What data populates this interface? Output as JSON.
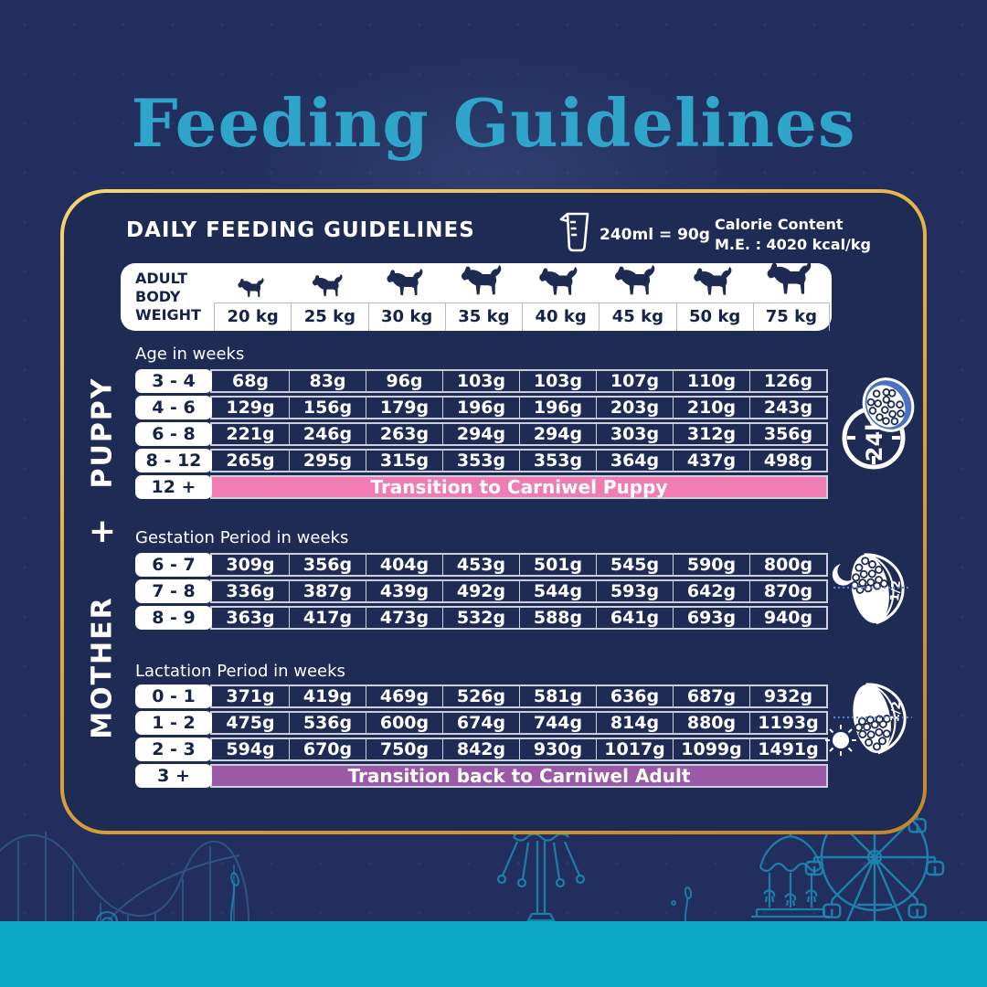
{
  "page_title": "Feeding Guidelines",
  "colors": {
    "background_navy": "#222f5e",
    "panel_navy": "#1e2b55",
    "gold_border": "#e3ab3f",
    "title_teal": "#2fa6c9",
    "bottom_strip_teal": "#0aa6c4",
    "table_border_silver": "#ccd0db",
    "puppy_transition_pink": "#ef7cb2",
    "mother_transition_purple": "#9a5aa8",
    "bowl_blue": "#4a71c4",
    "line_art_teal": "#1d8cb4"
  },
  "icons": [
    "measuring-cup-icon",
    "dog-icon",
    "clock-24h-icon",
    "kibble-bowl-icon",
    "crescent-moon-icon",
    "half-bowl-icon",
    "sun-icon",
    "ferris-wheel-icon",
    "carousel-icon",
    "swing-ride-icon",
    "roller-coaster-icon",
    "tree-icon"
  ],
  "panel": {
    "header": {
      "title": "DAILY FEEDING GUIDELINES",
      "cup_note": "240ml = 90g",
      "calorie_line1": "Calorie Content",
      "calorie_line2": "M.E. : 4020 kcal/kg"
    },
    "weight_header": {
      "label_lines": [
        "ADULT",
        "BODY",
        "WEIGHT"
      ],
      "weights": [
        "20 kg",
        "25 kg",
        "30 kg",
        "35 kg",
        "40 kg",
        "45 kg",
        "50 kg",
        "75 kg"
      ]
    },
    "puppy": {
      "section_label": "PUPPY",
      "age_label": "Age in weeks",
      "rows": [
        {
          "age": "3 - 4",
          "values": [
            "68g",
            "83g",
            "96g",
            "103g",
            "103g",
            "107g",
            "110g",
            "126g"
          ]
        },
        {
          "age": "4 - 6",
          "values": [
            "129g",
            "156g",
            "179g",
            "196g",
            "196g",
            "203g",
            "210g",
            "243g"
          ]
        },
        {
          "age": "6 - 8",
          "values": [
            "221g",
            "246g",
            "263g",
            "294g",
            "294g",
            "303g",
            "312g",
            "356g"
          ]
        },
        {
          "age": "8 - 12",
          "values": [
            "265g",
            "295g",
            "315g",
            "353g",
            "353g",
            "364g",
            "437g",
            "498g"
          ]
        }
      ],
      "transition": {
        "age": "12 +",
        "label": "Transition to Carniwel Puppy"
      },
      "bowl_icon_label": "24h"
    },
    "mother": {
      "plus": "+",
      "section_label": "MOTHER",
      "gestation": {
        "title": "Gestation Period in weeks",
        "rows": [
          {
            "age": "6 - 7",
            "values": [
              "309g",
              "356g",
              "404g",
              "453g",
              "501g",
              "545g",
              "590g",
              "800g"
            ]
          },
          {
            "age": "7 - 8",
            "values": [
              "336g",
              "387g",
              "439g",
              "492g",
              "544g",
              "593g",
              "642g",
              "870g"
            ]
          },
          {
            "age": "8 - 9",
            "values": [
              "363g",
              "417g",
              "473g",
              "532g",
              "588g",
              "641g",
              "693g",
              "940g"
            ]
          }
        ],
        "bowl_icon_label": "1/2"
      },
      "lactation": {
        "title": "Lactation Period in weeks",
        "rows": [
          {
            "age": "0 - 1",
            "values": [
              "371g",
              "419g",
              "469g",
              "526g",
              "581g",
              "636g",
              "687g",
              "932g"
            ]
          },
          {
            "age": "1 - 2",
            "values": [
              "475g",
              "536g",
              "600g",
              "674g",
              "744g",
              "814g",
              "880g",
              "1193g"
            ]
          },
          {
            "age": "2 - 3",
            "values": [
              "594g",
              "670g",
              "750g",
              "842g",
              "930g",
              "1017g",
              "1099g",
              "1491g"
            ]
          }
        ],
        "transition": {
          "age": "3 +",
          "label": "Transition back to Carniwel Adult"
        },
        "bowl_icon_label": "1/2"
      }
    }
  }
}
